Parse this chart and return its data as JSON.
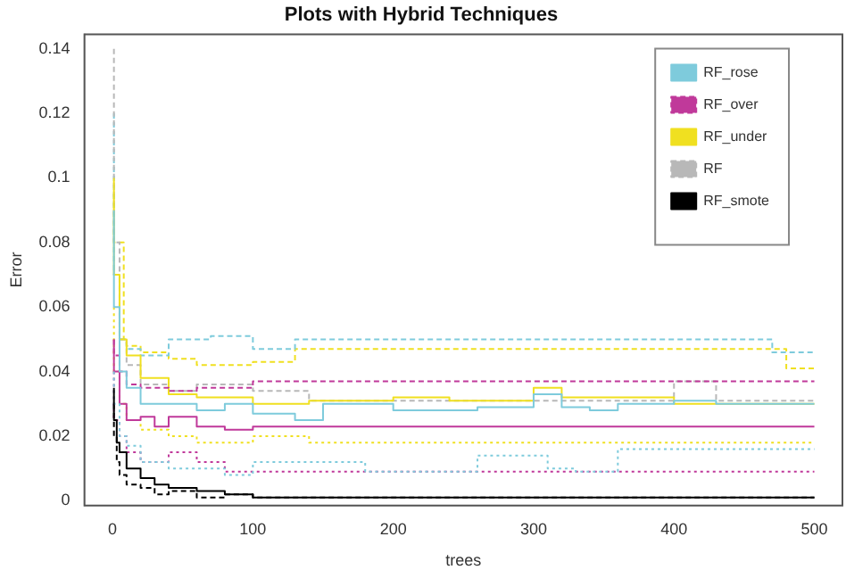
{
  "chart_data": {
    "type": "step",
    "title": "Plots with Hybrid Techniques",
    "xlabel": "trees",
    "ylabel": "Error",
    "xlim": [
      -20,
      520
    ],
    "ylim": [
      -0.0015,
      0.1445
    ],
    "xticks": [
      0,
      100,
      200,
      300,
      400,
      500
    ],
    "yticks": [
      0,
      0.02,
      0.04,
      0.06,
      0.08,
      0.1,
      0.12,
      0.14
    ],
    "grid": false,
    "legend": "top right",
    "marker": "none",
    "series": [
      {
        "name": "RF_rose",
        "color": "#7ecbdc",
        "line_style": "solid",
        "x": [
          1,
          5,
          10,
          20,
          40,
          60,
          80,
          100,
          130,
          150,
          180,
          200,
          260,
          300,
          320,
          340,
          360,
          400,
          430,
          500
        ],
        "values": [
          0.09,
          0.06,
          0.04,
          0.035,
          0.03,
          0.03,
          0.028,
          0.03,
          0.027,
          0.025,
          0.03,
          0.03,
          0.028,
          0.029,
          0.033,
          0.029,
          0.028,
          0.03,
          0.031,
          0.03
        ]
      },
      {
        "name": "RF_over",
        "color": "#c0399a",
        "line_style": "dashed",
        "x": [
          1,
          5,
          10,
          20,
          40,
          60,
          100,
          130,
          200,
          300,
          400,
          500
        ],
        "values": [
          0.05,
          0.045,
          0.04,
          0.036,
          0.035,
          0.034,
          0.035,
          0.037,
          0.037,
          0.037,
          0.037,
          0.037
        ]
      },
      {
        "name": "RF_under",
        "color": "#f0e020",
        "line_style": "solid",
        "x": [
          1,
          5,
          10,
          20,
          40,
          60,
          100,
          140,
          200,
          240,
          300,
          320,
          340,
          400,
          500
        ],
        "values": [
          0.1,
          0.07,
          0.05,
          0.045,
          0.038,
          0.033,
          0.032,
          0.03,
          0.031,
          0.032,
          0.031,
          0.035,
          0.032,
          0.032,
          0.03
        ]
      },
      {
        "name": "RF",
        "color": "#b8b8b8",
        "line_style": "dashed",
        "x": [
          1,
          5,
          10,
          20,
          40,
          60,
          100,
          140,
          200,
          300,
          400,
          430,
          500
        ],
        "values": [
          0.14,
          0.08,
          0.05,
          0.042,
          0.036,
          0.034,
          0.036,
          0.034,
          0.031,
          0.031,
          0.031,
          0.037,
          0.031
        ]
      },
      {
        "name": "RF_smote",
        "color": "#000000",
        "line_style": "solid",
        "x": [
          1,
          3,
          5,
          10,
          20,
          30,
          40,
          50,
          60,
          80,
          100,
          110,
          200,
          300,
          400,
          500
        ],
        "values": [
          0.035,
          0.025,
          0.018,
          0.015,
          0.01,
          0.007,
          0.005,
          0.004,
          0.004,
          0.003,
          0.002,
          0.001,
          0.001,
          0.001,
          0.001,
          0.001
        ]
      },
      {
        "color": "#7ecbdc",
        "line_style": "dashed",
        "x": [
          1,
          5,
          10,
          20,
          40,
          70,
          100,
          130,
          165,
          200,
          300,
          400,
          470,
          500
        ],
        "values": [
          0.12,
          0.07,
          0.05,
          0.047,
          0.045,
          0.05,
          0.051,
          0.047,
          0.05,
          0.05,
          0.05,
          0.05,
          0.05,
          0.046
        ]
      },
      {
        "color": "#7ecbdc",
        "line_style": "dotted",
        "x": [
          1,
          5,
          10,
          20,
          40,
          60,
          80,
          100,
          180,
          260,
          310,
          330,
          360,
          400,
          500
        ],
        "values": [
          0.04,
          0.03,
          0.02,
          0.017,
          0.012,
          0.01,
          0.01,
          0.008,
          0.012,
          0.009,
          0.014,
          0.01,
          0.009,
          0.016,
          0.016
        ]
      },
      {
        "color": "#c0399a",
        "line_style": "solid",
        "x": [
          1,
          5,
          10,
          20,
          30,
          40,
          60,
          80,
          100,
          130,
          200,
          300,
          400,
          500
        ],
        "values": [
          0.05,
          0.04,
          0.03,
          0.025,
          0.026,
          0.023,
          0.026,
          0.023,
          0.022,
          0.023,
          0.023,
          0.023,
          0.023,
          0.023
        ]
      },
      {
        "color": "#c0399a",
        "line_style": "dotted",
        "x": [
          1,
          5,
          10,
          20,
          40,
          60,
          80,
          100,
          200,
          300,
          400,
          500
        ],
        "values": [
          0.04,
          0.025,
          0.02,
          0.015,
          0.012,
          0.015,
          0.012,
          0.009,
          0.009,
          0.009,
          0.009,
          0.009
        ]
      },
      {
        "color": "#f0e020",
        "line_style": "dashed",
        "x": [
          1,
          8,
          10,
          20,
          40,
          60,
          100,
          130,
          235,
          300,
          400,
          480,
          500
        ],
        "values": [
          0.095,
          0.08,
          0.05,
          0.048,
          0.046,
          0.044,
          0.042,
          0.043,
          0.047,
          0.047,
          0.047,
          0.047,
          0.041
        ]
      },
      {
        "color": "#f0e020",
        "line_style": "dotted",
        "x": [
          1,
          5,
          10,
          20,
          40,
          60,
          100,
          140,
          160,
          200,
          300,
          500
        ],
        "values": [
          0.06,
          0.04,
          0.03,
          0.025,
          0.022,
          0.02,
          0.018,
          0.02,
          0.018,
          0.018,
          0.018,
          0.018
        ]
      },
      {
        "color": "#000000",
        "line_style": "dashed",
        "x": [
          1,
          3,
          5,
          10,
          20,
          30,
          40,
          60,
          80,
          100,
          110,
          500
        ],
        "values": [
          0.03,
          0.02,
          0.012,
          0.008,
          0.005,
          0.004,
          0.002,
          0.003,
          0.001,
          0.002,
          0.001,
          0.001
        ]
      }
    ]
  }
}
